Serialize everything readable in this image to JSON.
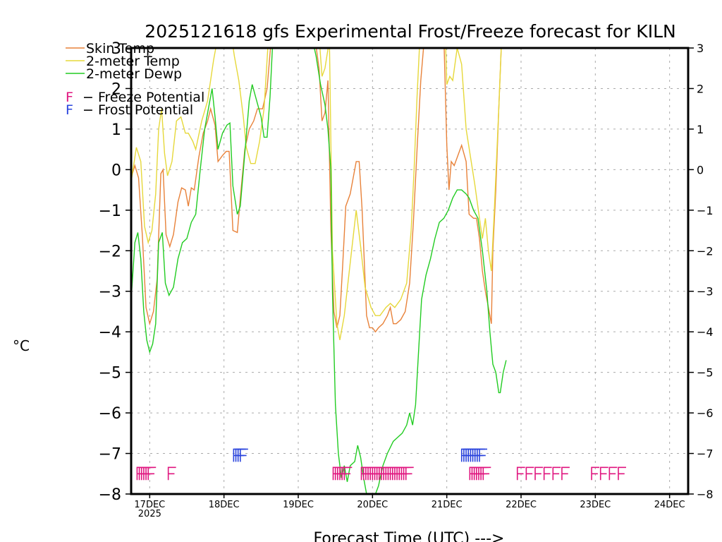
{
  "chart_data": {
    "type": "line",
    "title": "2025121618 gfs Experimental Frost/Freeze forecast for KILN",
    "xlabel": "Forecast Time (UTC) --->",
    "ylabel": "°C",
    "xlim": [
      16.75,
      24.25
    ],
    "ylim": [
      -8,
      3
    ],
    "grid": true,
    "y_ticks": [
      3,
      2,
      1,
      0,
      -1,
      -2,
      -3,
      -4,
      -5,
      -6,
      -7,
      -8
    ],
    "x_ticks": [
      {
        "x": 17,
        "label": "17DEC",
        "sublabel": "2025"
      },
      {
        "x": 18,
        "label": "18DEC",
        "sublabel": ""
      },
      {
        "x": 19,
        "label": "19DEC",
        "sublabel": ""
      },
      {
        "x": 20,
        "label": "20DEC",
        "sublabel": ""
      },
      {
        "x": 21,
        "label": "21DEC",
        "sublabel": ""
      },
      {
        "x": 22,
        "label": "22DEC",
        "sublabel": ""
      },
      {
        "x": 23,
        "label": "23DEC",
        "sublabel": ""
      },
      {
        "x": 24,
        "label": "24DEC",
        "sublabel": ""
      }
    ],
    "legend_position": "top-left",
    "series": [
      {
        "name": "Skin Temp",
        "color": "#e8823a",
        "points": [
          [
            16.75,
            -0.2
          ],
          [
            16.8,
            0.1
          ],
          [
            16.85,
            -0.2
          ],
          [
            16.9,
            -1.6
          ],
          [
            16.95,
            -3.4
          ],
          [
            17.0,
            -3.8
          ],
          [
            17.05,
            -3.5
          ],
          [
            17.1,
            -2.7
          ],
          [
            17.15,
            -0.1
          ],
          [
            17.18,
            0.0
          ],
          [
            17.22,
            -1.6
          ],
          [
            17.27,
            -1.9
          ],
          [
            17.32,
            -1.6
          ],
          [
            17.38,
            -0.8
          ],
          [
            17.43,
            -0.45
          ],
          [
            17.48,
            -0.5
          ],
          [
            17.52,
            -0.9
          ],
          [
            17.56,
            -0.45
          ],
          [
            17.6,
            -0.5
          ],
          [
            17.66,
            0.3
          ],
          [
            17.72,
            0.9
          ],
          [
            17.78,
            1.2
          ],
          [
            17.82,
            1.5
          ],
          [
            17.88,
            1.1
          ],
          [
            17.92,
            0.2
          ],
          [
            17.98,
            0.35
          ],
          [
            18.03,
            0.45
          ],
          [
            18.07,
            0.45
          ],
          [
            18.12,
            -1.5
          ],
          [
            18.18,
            -1.55
          ],
          [
            18.22,
            -0.7
          ],
          [
            18.28,
            0.5
          ],
          [
            18.34,
            1.0
          ],
          [
            18.4,
            1.2
          ],
          [
            18.45,
            1.5
          ],
          [
            18.52,
            1.5
          ],
          [
            18.58,
            2.0
          ],
          [
            18.64,
            3.3
          ]
        ],
        "points2": [
          [
            19.22,
            3.3
          ],
          [
            19.28,
            2.5
          ],
          [
            19.32,
            1.2
          ],
          [
            19.36,
            1.4
          ],
          [
            19.4,
            2.2
          ],
          [
            19.44,
            -1.5
          ],
          [
            19.48,
            -3.5
          ],
          [
            19.52,
            -3.9
          ],
          [
            19.56,
            -3.6
          ],
          [
            19.6,
            -2.3
          ],
          [
            19.64,
            -0.9
          ],
          [
            19.7,
            -0.6
          ],
          [
            19.78,
            0.2
          ],
          [
            19.82,
            0.2
          ],
          [
            19.86,
            -1.0
          ],
          [
            19.92,
            -3.6
          ],
          [
            19.96,
            -3.9
          ],
          [
            20.0,
            -3.9
          ],
          [
            20.04,
            -4.0
          ],
          [
            20.08,
            -3.9
          ],
          [
            20.14,
            -3.8
          ],
          [
            20.2,
            -3.6
          ],
          [
            20.24,
            -3.4
          ],
          [
            20.28,
            -3.8
          ],
          [
            20.32,
            -3.8
          ],
          [
            20.38,
            -3.7
          ],
          [
            20.44,
            -3.5
          ],
          [
            20.5,
            -2.8
          ],
          [
            20.55,
            -1.3
          ],
          [
            20.6,
            0.5
          ],
          [
            20.65,
            2.2
          ],
          [
            20.7,
            3.3
          ]
        ],
        "points3": [
          [
            20.96,
            3.3
          ],
          [
            21.0,
            0.6
          ],
          [
            21.03,
            -0.5
          ],
          [
            21.06,
            0.2
          ],
          [
            21.1,
            0.1
          ],
          [
            21.16,
            0.4
          ],
          [
            21.2,
            0.6
          ],
          [
            21.26,
            0.2
          ],
          [
            21.3,
            -1.1
          ],
          [
            21.36,
            -1.2
          ],
          [
            21.4,
            -1.2
          ],
          [
            21.44,
            -1.7
          ],
          [
            21.48,
            -2.5
          ],
          [
            21.52,
            -3.0
          ],
          [
            21.56,
            -3.4
          ],
          [
            21.6,
            -3.8
          ],
          [
            21.62,
            -2.0
          ],
          [
            21.66,
            -0.5
          ],
          [
            21.7,
            1.5
          ],
          [
            21.74,
            3.3
          ]
        ]
      },
      {
        "name": "2-meter Temp",
        "color": "#e6d83a",
        "points": [
          [
            16.75,
            -0.3
          ],
          [
            16.82,
            0.55
          ],
          [
            16.88,
            0.2
          ],
          [
            16.93,
            -1.4
          ],
          [
            16.98,
            -1.8
          ],
          [
            17.03,
            -1.5
          ],
          [
            17.08,
            -0.6
          ],
          [
            17.12,
            1.0
          ],
          [
            17.16,
            1.5
          ],
          [
            17.2,
            0.4
          ],
          [
            17.24,
            -0.15
          ],
          [
            17.3,
            0.2
          ],
          [
            17.36,
            1.2
          ],
          [
            17.42,
            1.3
          ],
          [
            17.48,
            0.9
          ],
          [
            17.52,
            0.9
          ],
          [
            17.58,
            0.7
          ],
          [
            17.62,
            0.5
          ],
          [
            17.7,
            1.2
          ],
          [
            17.78,
            1.7
          ],
          [
            17.86,
            2.7
          ],
          [
            17.92,
            3.3
          ]
        ],
        "points2": [
          [
            18.0,
            3.3
          ],
          [
            18.04,
            3.3
          ],
          [
            18.1,
            3.3
          ],
          [
            18.14,
            2.8
          ],
          [
            18.2,
            2.2
          ],
          [
            18.26,
            1.3
          ],
          [
            18.3,
            0.55
          ],
          [
            18.36,
            0.15
          ],
          [
            18.42,
            0.15
          ],
          [
            18.48,
            0.7
          ],
          [
            18.54,
            1.5
          ],
          [
            18.6,
            3.3
          ]
        ],
        "points3": [
          [
            19.28,
            3.3
          ],
          [
            19.32,
            2.3
          ],
          [
            19.36,
            2.5
          ],
          [
            19.42,
            3.2
          ],
          [
            19.46,
            -2.0
          ],
          [
            19.52,
            -3.8
          ],
          [
            19.56,
            -4.2
          ],
          [
            19.62,
            -3.6
          ],
          [
            19.7,
            -2.3
          ],
          [
            19.78,
            -1.0
          ],
          [
            19.84,
            -1.9
          ],
          [
            19.9,
            -2.9
          ],
          [
            19.98,
            -3.4
          ],
          [
            20.04,
            -3.6
          ],
          [
            20.1,
            -3.6
          ],
          [
            20.18,
            -3.4
          ],
          [
            20.24,
            -3.3
          ],
          [
            20.3,
            -3.4
          ],
          [
            20.38,
            -3.2
          ],
          [
            20.46,
            -2.8
          ],
          [
            20.52,
            -1.5
          ],
          [
            20.56,
            0.0
          ],
          [
            20.6,
            1.8
          ],
          [
            20.64,
            3.3
          ]
        ],
        "points4": [
          [
            20.98,
            3.3
          ],
          [
            21.0,
            2.1
          ],
          [
            21.04,
            2.3
          ],
          [
            21.08,
            2.2
          ],
          [
            21.14,
            3.0
          ],
          [
            21.2,
            2.6
          ],
          [
            21.26,
            1.0
          ],
          [
            21.32,
            0.3
          ],
          [
            21.38,
            -0.4
          ],
          [
            21.44,
            -1.2
          ],
          [
            21.48,
            -1.7
          ],
          [
            21.52,
            -1.2
          ],
          [
            21.56,
            -2.0
          ],
          [
            21.6,
            -2.5
          ],
          [
            21.64,
            -1.0
          ],
          [
            21.7,
            1.5
          ],
          [
            21.74,
            3.3
          ]
        ]
      },
      {
        "name": "2-meter Dewp",
        "color": "#22cc22",
        "points": [
          [
            16.75,
            -3.2
          ],
          [
            16.8,
            -1.8
          ],
          [
            16.84,
            -1.55
          ],
          [
            16.88,
            -2.2
          ],
          [
            16.92,
            -3.5
          ],
          [
            16.96,
            -4.2
          ],
          [
            17.0,
            -4.5
          ],
          [
            17.04,
            -4.3
          ],
          [
            17.08,
            -3.8
          ],
          [
            17.12,
            -1.8
          ],
          [
            17.17,
            -1.55
          ],
          [
            17.21,
            -2.8
          ],
          [
            17.26,
            -3.1
          ],
          [
            17.32,
            -2.9
          ],
          [
            17.38,
            -2.2
          ],
          [
            17.44,
            -1.8
          ],
          [
            17.5,
            -1.7
          ],
          [
            17.56,
            -1.3
          ],
          [
            17.62,
            -1.1
          ],
          [
            17.68,
            0.0
          ],
          [
            17.74,
            1.0
          ],
          [
            17.8,
            1.6
          ],
          [
            17.84,
            2.0
          ],
          [
            17.88,
            1.3
          ],
          [
            17.92,
            0.5
          ],
          [
            17.98,
            0.9
          ],
          [
            18.04,
            1.1
          ],
          [
            18.08,
            1.15
          ],
          [
            18.12,
            -0.4
          ],
          [
            18.18,
            -1.1
          ],
          [
            18.22,
            -0.9
          ],
          [
            18.28,
            0.4
          ],
          [
            18.34,
            1.7
          ],
          [
            18.38,
            2.1
          ],
          [
            18.44,
            1.7
          ],
          [
            18.5,
            1.3
          ],
          [
            18.54,
            0.8
          ],
          [
            18.58,
            0.8
          ],
          [
            18.62,
            1.8
          ],
          [
            18.66,
            3.3
          ]
        ],
        "points2": [
          [
            19.18,
            3.3
          ],
          [
            19.24,
            2.8
          ],
          [
            19.3,
            2.1
          ],
          [
            19.36,
            1.6
          ],
          [
            19.4,
            1.0
          ],
          [
            19.44,
            0.0
          ],
          [
            19.46,
            -3.0
          ],
          [
            19.5,
            -5.8
          ],
          [
            19.54,
            -7.0
          ],
          [
            19.58,
            -7.6
          ],
          [
            19.62,
            -7.3
          ],
          [
            19.66,
            -7.7
          ],
          [
            19.7,
            -7.3
          ],
          [
            19.76,
            -7.2
          ],
          [
            19.8,
            -6.8
          ],
          [
            19.84,
            -7.1
          ],
          [
            19.88,
            -7.6
          ],
          [
            19.92,
            -8.0
          ],
          [
            19.96,
            -8.2
          ],
          [
            20.02,
            -8.1
          ],
          [
            20.08,
            -7.8
          ],
          [
            20.14,
            -7.3
          ],
          [
            20.2,
            -7.0
          ],
          [
            20.28,
            -6.7
          ],
          [
            20.34,
            -6.6
          ],
          [
            20.4,
            -6.5
          ],
          [
            20.46,
            -6.3
          ],
          [
            20.5,
            -6.0
          ],
          [
            20.54,
            -6.3
          ],
          [
            20.58,
            -5.8
          ],
          [
            20.62,
            -4.5
          ],
          [
            20.66,
            -3.2
          ],
          [
            20.72,
            -2.6
          ],
          [
            20.78,
            -2.2
          ],
          [
            20.84,
            -1.7
          ],
          [
            20.9,
            -1.3
          ],
          [
            20.96,
            -1.2
          ],
          [
            21.02,
            -1.0
          ],
          [
            21.08,
            -0.7
          ],
          [
            21.14,
            -0.5
          ],
          [
            21.2,
            -0.5
          ],
          [
            21.26,
            -0.6
          ],
          [
            21.3,
            -0.7
          ],
          [
            21.36,
            -1.0
          ],
          [
            21.42,
            -1.2
          ],
          [
            21.48,
            -2.0
          ],
          [
            21.54,
            -3.0
          ],
          [
            21.58,
            -4.0
          ],
          [
            21.62,
            -4.8
          ],
          [
            21.66,
            -5.0
          ],
          [
            21.7,
            -5.5
          ],
          [
            21.72,
            -5.5
          ],
          [
            21.76,
            -5.0
          ],
          [
            21.8,
            -4.7
          ]
        ]
      }
    ],
    "freeze_potential": {
      "label": "F - Freeze Potential",
      "color": "#e0157f",
      "y": -7.5,
      "x": [
        16.83,
        16.86,
        16.89,
        16.92,
        16.95,
        16.98,
        17.25,
        19.47,
        19.5,
        19.53,
        19.56,
        19.59,
        19.62,
        19.85,
        19.88,
        19.91,
        19.94,
        19.97,
        20.0,
        20.03,
        20.06,
        20.09,
        20.12,
        20.15,
        20.18,
        20.21,
        20.24,
        20.27,
        20.3,
        20.33,
        20.36,
        20.39,
        20.42,
        20.45,
        21.31,
        21.34,
        21.37,
        21.4,
        21.43,
        21.46,
        21.49,
        21.95,
        22.07,
        22.19,
        22.31,
        22.43,
        22.55,
        22.95,
        23.07,
        23.19,
        23.31
      ]
    },
    "frost_potential": {
      "label": "F - Frost Potential",
      "color": "#2a44dd",
      "y": -7.05,
      "x": [
        18.13,
        18.16,
        18.19,
        18.22,
        21.2,
        21.23,
        21.26,
        21.29,
        21.32,
        21.35,
        21.38,
        21.41,
        21.44
      ]
    },
    "legend": [
      {
        "label": "Skin Temp",
        "color": "#e8823a",
        "kind": "line"
      },
      {
        "label": "2-meter Temp",
        "color": "#e6d83a",
        "kind": "line"
      },
      {
        "label": "2-meter Dewp",
        "color": "#22cc22",
        "kind": "line"
      },
      {
        "label": "F - Freeze Potential",
        "color": "#e0157f",
        "kind": "glyph"
      },
      {
        "label": "F - Frost Potential",
        "color": "#2a44dd",
        "kind": "glyph"
      }
    ]
  }
}
